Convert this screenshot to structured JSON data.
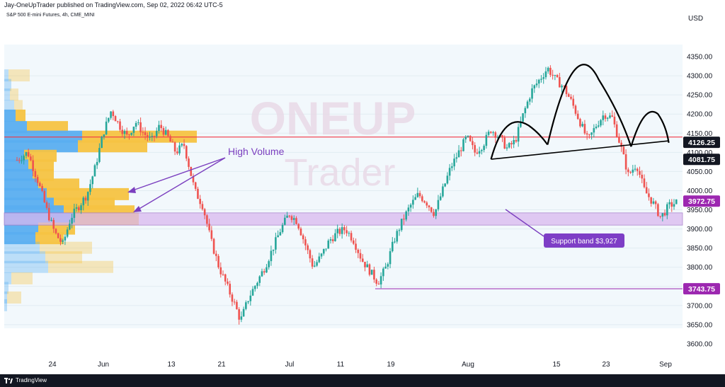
{
  "header": {
    "publish_line": "Jay-OneUpTrader published on TradingView.com, Sep 02, 2022 06:42 UTC-5"
  },
  "symbol": {
    "title": "S&P 500 E-mini Futures, 4h, CME_MINI"
  },
  "watermark": {
    "line1": "ONEUP",
    "line2": "Trader"
  },
  "footer": {
    "brand": "TradingView"
  },
  "colors": {
    "up": "#26a69a",
    "down": "#ef5350",
    "support_band": "#d9b8ef",
    "resistance_line": "#f23645",
    "annotation_purple": "#7b3fbf",
    "volume_blue": "#5aaef0",
    "volume_yellow": "#f5c342",
    "chart_bg": "#f2f8fc"
  },
  "chart_data": {
    "type": "candlestick",
    "currency": "USD",
    "y_ticks": [
      4350,
      4300,
      4250,
      4200,
      4150,
      4100,
      4050,
      4000,
      3950,
      3900,
      3850,
      3800,
      3750,
      3700,
      3650,
      3600
    ],
    "y_tick_labels": [
      "4350.00",
      "4300.00",
      "4250.00",
      "4200.00",
      "4150.00",
      "4100.00",
      "4050.00",
      "4000.00",
      "3950.00",
      "3900.00",
      "3850.00",
      "3800.00",
      "3750.00",
      "3700.00",
      "3650.00",
      "3600.00"
    ],
    "x_ticks": [
      "24",
      "Jun",
      "13",
      "21",
      "Jul",
      "11",
      "19",
      "Aug",
      "15",
      "23",
      "Sep"
    ],
    "price_labels": [
      {
        "value": 4126.25,
        "text": "4126.25",
        "style": "dark"
      },
      {
        "value": 4081.75,
        "text": "4081.75",
        "style": "dark"
      },
      {
        "value": 3972.75,
        "text": "3972.75",
        "style": "purple"
      },
      {
        "value": 3743.75,
        "text": "3743.75",
        "style": "purple"
      }
    ],
    "resistance_level": 4140,
    "support_band": {
      "low": 3910,
      "high": 3942,
      "label": "Support band $3,927"
    },
    "secondary_support": 3743.75,
    "annotations": {
      "high_volume": "High Volume"
    },
    "volume_profile": [
      {
        "price": 4300,
        "blue": 6,
        "yellow": 30,
        "faded": true
      },
      {
        "price": 4275,
        "blue": 10,
        "yellow": 0,
        "faded": true
      },
      {
        "price": 4250,
        "blue": 8,
        "yellow": 12,
        "faded": true
      },
      {
        "price": 4220,
        "blue": 14,
        "yellow": 12,
        "faded": true
      },
      {
        "price": 4195,
        "blue": 16,
        "yellow": 14,
        "faded": false
      },
      {
        "price": 4165,
        "blue": 32,
        "yellow": 58,
        "faded": false
      },
      {
        "price": 4140,
        "blue": 110,
        "yellow": 162,
        "faded": false
      },
      {
        "price": 4115,
        "blue": 104,
        "yellow": 98,
        "faded": false
      },
      {
        "price": 4090,
        "blue": 28,
        "yellow": 46,
        "faded": false
      },
      {
        "price": 4065,
        "blue": 34,
        "yellow": 36,
        "faded": false
      },
      {
        "price": 4040,
        "blue": 40,
        "yellow": 30,
        "faded": false
      },
      {
        "price": 4015,
        "blue": 48,
        "yellow": 58,
        "faded": false
      },
      {
        "price": 3990,
        "blue": 60,
        "yellow": 116,
        "faded": false
      },
      {
        "price": 3965,
        "blue": 70,
        "yellow": 86,
        "faded": false
      },
      {
        "price": 3945,
        "blue": 84,
        "yellow": 100,
        "faded": false
      },
      {
        "price": 3925,
        "blue": 100,
        "yellow": 90,
        "faded": false
      },
      {
        "price": 3900,
        "blue": 48,
        "yellow": 52,
        "faded": false
      },
      {
        "price": 3875,
        "blue": 44,
        "yellow": 40,
        "faded": false
      },
      {
        "price": 3850,
        "blue": 50,
        "yellow": 74,
        "faded": true
      },
      {
        "price": 3825,
        "blue": 58,
        "yellow": 52,
        "faded": true
      },
      {
        "price": 3800,
        "blue": 62,
        "yellow": 92,
        "faded": true
      },
      {
        "price": 3770,
        "blue": 10,
        "yellow": 30,
        "faded": true
      },
      {
        "price": 3745,
        "blue": 6,
        "yellow": 0,
        "faded": true
      },
      {
        "price": 3720,
        "blue": 4,
        "yellow": 20,
        "faded": true
      },
      {
        "price": 3700,
        "blue": 4,
        "yellow": 0,
        "faded": true
      }
    ],
    "price_path": [
      [
        0,
        4080
      ],
      [
        4,
        4100
      ],
      [
        8,
        4020
      ],
      [
        11,
        3950
      ],
      [
        14,
        3890
      ],
      [
        17,
        3860
      ],
      [
        20,
        3930
      ],
      [
        23,
        3960
      ],
      [
        26,
        3990
      ],
      [
        29,
        4060
      ],
      [
        32,
        4150
      ],
      [
        35,
        4210
      ],
      [
        38,
        4170
      ],
      [
        41,
        4140
      ],
      [
        44,
        4180
      ],
      [
        47,
        4150
      ],
      [
        50,
        4130
      ],
      [
        53,
        4170
      ],
      [
        56,
        4140
      ],
      [
        59,
        4100
      ],
      [
        62,
        4120
      ],
      [
        66,
        4000
      ],
      [
        69,
        3960
      ],
      [
        72,
        3870
      ],
      [
        75,
        3800
      ],
      [
        78,
        3750
      ],
      [
        81,
        3700
      ],
      [
        83,
        3660
      ],
      [
        86,
        3720
      ],
      [
        89,
        3760
      ],
      [
        92,
        3800
      ],
      [
        95,
        3850
      ],
      [
        98,
        3900
      ],
      [
        101,
        3940
      ],
      [
        104,
        3920
      ],
      [
        107,
        3860
      ],
      [
        110,
        3800
      ],
      [
        113,
        3830
      ],
      [
        116,
        3870
      ],
      [
        119,
        3890
      ],
      [
        122,
        3900
      ],
      [
        125,
        3870
      ],
      [
        128,
        3820
      ],
      [
        131,
        3790
      ],
      [
        134,
        3760
      ],
      [
        137,
        3800
      ],
      [
        140,
        3870
      ],
      [
        143,
        3920
      ],
      [
        146,
        3960
      ],
      [
        149,
        3990
      ],
      [
        152,
        3970
      ],
      [
        155,
        3940
      ],
      [
        158,
        4000
      ],
      [
        161,
        4060
      ],
      [
        164,
        4100
      ],
      [
        167,
        4140
      ],
      [
        170,
        4100
      ],
      [
        173,
        4120
      ],
      [
        176,
        4160
      ],
      [
        179,
        4140
      ],
      [
        182,
        4110
      ],
      [
        185,
        4130
      ],
      [
        188,
        4200
      ],
      [
        191,
        4260
      ],
      [
        194,
        4290
      ],
      [
        197,
        4320
      ],
      [
        200,
        4290
      ],
      [
        203,
        4270
      ],
      [
        206,
        4230
      ],
      [
        209,
        4180
      ],
      [
        212,
        4130
      ],
      [
        215,
        4170
      ],
      [
        218,
        4200
      ],
      [
        221,
        4190
      ],
      [
        224,
        4120
      ],
      [
        227,
        4040
      ],
      [
        230,
        4070
      ],
      [
        233,
        4000
      ],
      [
        236,
        3970
      ],
      [
        239,
        3930
      ],
      [
        242,
        3960
      ],
      [
        245,
        3970
      ]
    ]
  }
}
